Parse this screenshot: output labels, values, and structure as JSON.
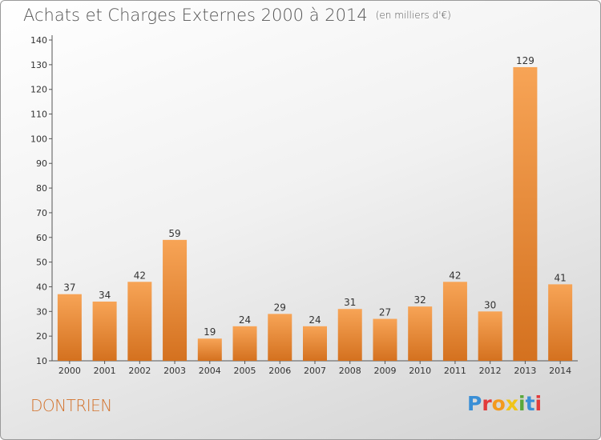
{
  "title": "Achats et Charges Externes 2000 à 2014",
  "unit": "(en milliers d'€)",
  "commune": "DONTRIEN",
  "logo": {
    "text": "Proxiti",
    "letter_colors": [
      "#3a8fd6",
      "#e23b3b",
      "#f39a1e",
      "#f0c419",
      "#5aa83c",
      "#3a8fd6",
      "#e23b3b"
    ]
  },
  "colors": {
    "bar_top": "#f7a456",
    "bar_bottom": "#d4711f",
    "axis": "#555555",
    "text": "#333333"
  },
  "chart_data": {
    "type": "bar",
    "categories": [
      "2000",
      "2001",
      "2002",
      "2003",
      "2004",
      "2005",
      "2006",
      "2007",
      "2008",
      "2009",
      "2010",
      "2011",
      "2012",
      "2013",
      "2014"
    ],
    "values": [
      37,
      34,
      42,
      59,
      19,
      24,
      29,
      24,
      31,
      27,
      32,
      42,
      30,
      129,
      41
    ],
    "ylim": [
      10,
      140
    ],
    "yticks": [
      10,
      20,
      30,
      40,
      50,
      60,
      70,
      80,
      90,
      100,
      110,
      120,
      130,
      140
    ],
    "grid": false,
    "xlabel": "",
    "ylabel": ""
  }
}
